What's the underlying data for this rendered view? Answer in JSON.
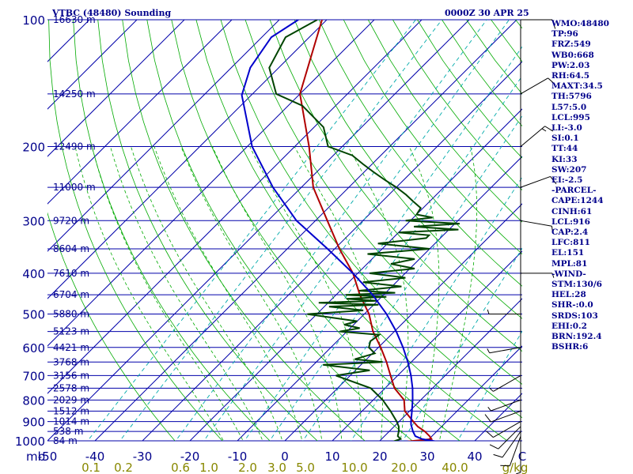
{
  "header": {
    "station": "VTBC (48480) Sounding",
    "time": "0000Z 30 APR 25"
  },
  "indices": [
    "WMO:48480",
    "TP:96",
    "FRZ:549",
    "WB0:668",
    "PW:2.03",
    "RH:64.5",
    "MAXT:34.5",
    "TH:5796",
    "L57:5.0",
    "LCL:995",
    "LI:-3.0",
    "SI:0.1",
    "TT:44",
    "KI:33",
    "SW:207",
    "EI:-2.5",
    "-PARCEL-",
    "CAPE:1244",
    "CINH:61",
    "LCL:916",
    "CAP:2.4",
    "LFC:811",
    "EL:151",
    "MPL:81",
    "-WIND-",
    "STM:130/6",
    "HEL:28",
    "SHR-:0.0",
    "SRDS:103",
    "EHI:0.2",
    "BRN:192.4",
    "BSHR:6"
  ],
  "colors": {
    "isobar": "#0000aa",
    "isotherm": "#0000aa",
    "dry_adiabat": "#00aa00",
    "moist_adiabat": "#00aa00",
    "mixing_ratio": "#00aaaa",
    "temperature": "#b00000",
    "dewpoint": "#004400",
    "parcel": "#0000cc",
    "wind": "#000000",
    "label": "#00008b",
    "mixing_label": "#888800"
  },
  "chart_data": {
    "type": "line",
    "title": "VTBC (48480) Sounding",
    "xlabel": "C",
    "ylabel": "mb",
    "xlim": [
      -50,
      50
    ],
    "ylim": [
      1000,
      100
    ],
    "y_scale": "log",
    "x_ticks": [
      "-50",
      "-40",
      "-30",
      "-20",
      "-10",
      "0",
      "10",
      "20",
      "30",
      "40",
      "C"
    ],
    "pressure_ticks": [
      100,
      200,
      300,
      400,
      500,
      600,
      700,
      800,
      900,
      1000
    ],
    "height_labels": [
      {
        "p": 100,
        "h": "16630 m"
      },
      {
        "p": 150,
        "h": "14250 m"
      },
      {
        "p": 200,
        "h": "12490 m"
      },
      {
        "p": 250,
        "h": "11000 m"
      },
      {
        "p": 300,
        "h": "9720 m"
      },
      {
        "p": 350,
        "h": "8604 m"
      },
      {
        "p": 400,
        "h": "7610 m"
      },
      {
        "p": 450,
        "h": "6704 m"
      },
      {
        "p": 500,
        "h": "5880 m"
      },
      {
        "p": 550,
        "h": "5123 m"
      },
      {
        "p": 600,
        "h": "4421 m"
      },
      {
        "p": 650,
        "h": "3768 m"
      },
      {
        "p": 700,
        "h": "3156 m"
      },
      {
        "p": 750,
        "h": "2578 m"
      },
      {
        "p": 800,
        "h": "2029 m"
      },
      {
        "p": 850,
        "h": "1512 m"
      },
      {
        "p": 900,
        "h": "1014 m"
      },
      {
        "p": 950,
        "h": "538 m"
      },
      {
        "p": 1000,
        "h": "84 m"
      }
    ],
    "mixing_ratio_labels": [
      "0.1",
      "0.2",
      "0.6",
      "1.0",
      "2.0",
      "3.0",
      "5.0",
      "10.0",
      "20.0",
      "40.0",
      "g/kg"
    ],
    "series": [
      {
        "key": "temperature",
        "p": [
          1003,
          990,
          975,
          950,
          925,
          900,
          850,
          800,
          750,
          700,
          650,
          600,
          550,
          500,
          450,
          400,
          350,
          300,
          250,
          200,
          150,
          100
        ],
        "t": [
          26.0,
          30.5,
          29.5,
          27.5,
          25.0,
          23.0,
          19.0,
          16.5,
          12.0,
          8.5,
          4.8,
          0.5,
          -4.5,
          -9.0,
          -15.0,
          -21.0,
          -29.0,
          -37.5,
          -47.5,
          -57.0,
          -70.0,
          -81.0
        ]
      },
      {
        "key": "dewpoint",
        "p": [
          1003,
          990,
          975,
          950,
          925,
          900,
          850,
          800,
          750,
          700,
          680,
          660,
          650,
          640,
          620,
          600,
          580,
          560,
          550,
          540,
          530,
          520,
          500,
          490,
          480,
          475,
          470,
          465,
          460,
          455,
          450,
          445,
          440,
          430,
          420,
          410,
          400,
          390,
          380,
          370,
          360,
          350,
          340,
          330,
          325,
          320,
          315,
          310,
          305,
          300,
          295,
          290,
          280,
          270,
          260,
          250,
          240,
          230,
          220,
          210,
          200,
          180,
          160,
          150,
          130,
          110,
          100
        ],
        "t": [
          23.0,
          24.0,
          22.8,
          22.0,
          21.0,
          19.5,
          16.0,
          12.0,
          7.0,
          -3.0,
          3.0,
          -8.0,
          4.0,
          -2.5,
          0.5,
          -2.0,
          -3.0,
          -2.5,
          -11.5,
          -8.0,
          -12.0,
          -10.0,
          -22.0,
          -11.0,
          -19.0,
          -9.0,
          -22.0,
          -10.0,
          -17.0,
          -9.0,
          -18.0,
          -8.0,
          -16.0,
          -8.0,
          -17.0,
          -9.0,
          -17.5,
          -9.0,
          -15.0,
          -11.0,
          -22.0,
          -10.0,
          -22.0,
          -13.0,
          -13.0,
          -20.0,
          -8.0,
          -18.0,
          -9.0,
          -21.0,
          -16.0,
          -20.0,
          -20.5,
          -23.5,
          -26.5,
          -30.0,
          -34.0,
          -38.0,
          -42.0,
          -46.0,
          -53.0,
          -58.0,
          -67.0,
          -75.0,
          -82.0,
          -85.0,
          -82.0
        ]
      },
      {
        "key": "parcel",
        "p": [
          1003,
          990,
          975,
          950,
          925,
          916,
          900,
          850,
          800,
          750,
          700,
          650,
          600,
          550,
          500,
          450,
          400,
          350,
          300,
          250,
          200,
          151,
          130,
          110,
          100
        ],
        "t": [
          32.0,
          28.5,
          26.5,
          25.0,
          23.7,
          23.2,
          22.5,
          20.5,
          18.3,
          15.8,
          12.8,
          9.3,
          5.2,
          0.4,
          -5.3,
          -12.3,
          -21.0,
          -31.5,
          -44.0,
          -56.0,
          -69.0,
          -82.0,
          -86.0,
          -88.0,
          -86.0
        ]
      }
    ],
    "wind_barbs": [
      {
        "p": 1000,
        "dir": 180,
        "spd": 5
      },
      {
        "p": 975,
        "dir": 200,
        "spd": 10
      },
      {
        "p": 950,
        "dir": 215,
        "spd": 12
      },
      {
        "p": 925,
        "dir": 225,
        "spd": 10
      },
      {
        "p": 900,
        "dir": 240,
        "spd": 10
      },
      {
        "p": 850,
        "dir": 250,
        "spd": 8
      },
      {
        "p": 800,
        "dir": 250,
        "spd": 5
      },
      {
        "p": 700,
        "dir": 240,
        "spd": 5
      },
      {
        "p": 600,
        "dir": 260,
        "spd": 5
      },
      {
        "p": 500,
        "dir": 270,
        "spd": 5
      },
      {
        "p": 400,
        "dir": 90,
        "spd": 5
      },
      {
        "p": 300,
        "dir": 100,
        "spd": 5
      },
      {
        "p": 250,
        "dir": 70,
        "spd": 10
      },
      {
        "p": 200,
        "dir": 50,
        "spd": 15
      },
      {
        "p": 150,
        "dir": 60,
        "spd": 10
      },
      {
        "p": 100,
        "dir": 90,
        "spd": 10
      }
    ]
  }
}
